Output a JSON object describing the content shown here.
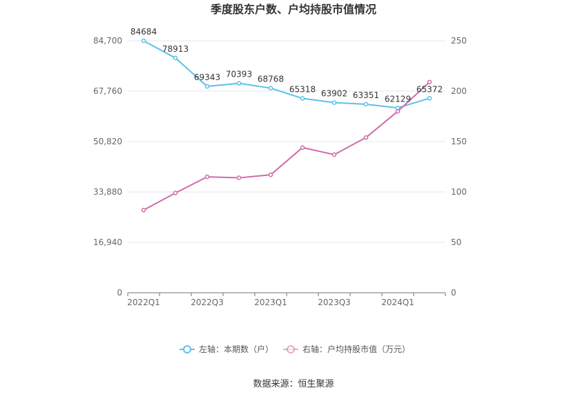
{
  "chart_data": {
    "type": "line",
    "title": "季度股东户数、户均持股市值情况",
    "categories": [
      "2022Q1",
      "2022Q2",
      "2022Q3",
      "2022Q4",
      "2023Q1",
      "2023Q2",
      "2023Q3",
      "2023Q4",
      "2024Q1",
      "2024Q2"
    ],
    "x_tick_labels": [
      "2022Q1",
      "2022Q3",
      "2023Q1",
      "2023Q3",
      "2024Q1"
    ],
    "y_left": {
      "ticks": [
        "0",
        "16,940",
        "33,880",
        "50,820",
        "67,760",
        "84,700"
      ],
      "min": 0,
      "max": 84700
    },
    "y_right": {
      "ticks": [
        "0",
        "50",
        "100",
        "150",
        "200",
        "250"
      ],
      "min": 0,
      "max": 250
    },
    "series": [
      {
        "name": "左轴：本期数（户）",
        "axis": "left",
        "color": "#5bc0eb",
        "values": [
          84684,
          78913,
          69343,
          70393,
          68768,
          65318,
          63902,
          63351,
          62129,
          65372
        ],
        "labels": [
          "84684",
          "78913",
          "69343",
          "70393",
          "68768",
          "65318",
          "63902",
          "63351",
          "62129",
          "65372"
        ]
      },
      {
        "name": "右轴：户均持股市值（万元）",
        "axis": "right",
        "color": "#d16aa9",
        "values": [
          82,
          99,
          115,
          114,
          117,
          144,
          137,
          154,
          180,
          209
        ]
      }
    ],
    "legend_position": "bottom",
    "grid": true
  },
  "source_text": "数据来源：恒生聚源"
}
